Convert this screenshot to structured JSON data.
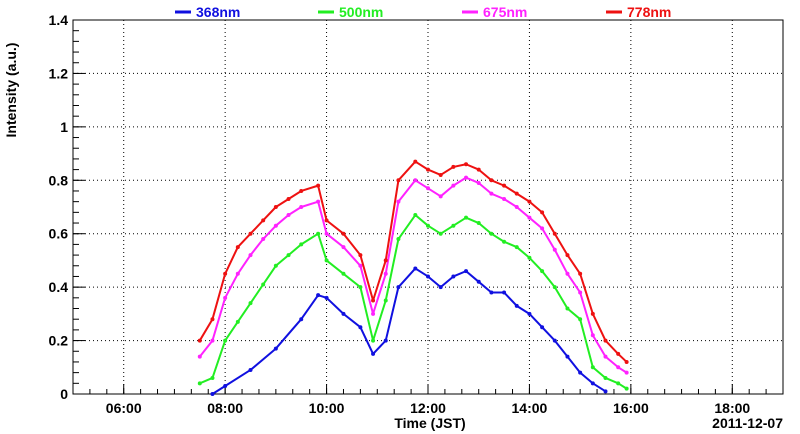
{
  "chart_data": {
    "type": "scatter",
    "xlabel": "Time (JST)",
    "ylabel": "Intensity (a.u.)",
    "date_label": "2011-12-07",
    "xlim": [
      "05:00",
      "19:00"
    ],
    "ylim": [
      0,
      1.4
    ],
    "x_ticks": [
      "06:00",
      "08:00",
      "10:00",
      "12:00",
      "14:00",
      "16:00",
      "18:00"
    ],
    "y_ticks": [
      "0",
      "0.2",
      "0.4",
      "0.6",
      "0.8",
      "1",
      "1.2",
      "1.4"
    ],
    "grid": true,
    "legend_position": "top",
    "series": [
      {
        "name": "368nm",
        "color": "#1010e0",
        "x": [
          "07:45",
          "08:00",
          "08:30",
          "09:00",
          "09:30",
          "09:50",
          "10:00",
          "10:20",
          "10:40",
          "10:55",
          "11:10",
          "11:25",
          "11:45",
          "12:00",
          "12:15",
          "12:30",
          "12:45",
          "13:00",
          "13:15",
          "13:30",
          "13:45",
          "14:00",
          "14:15",
          "14:30",
          "14:45",
          "15:00",
          "15:15",
          "15:30"
        ],
        "values": [
          0.0,
          0.03,
          0.09,
          0.17,
          0.28,
          0.37,
          0.36,
          0.3,
          0.25,
          0.15,
          0.2,
          0.4,
          0.47,
          0.44,
          0.4,
          0.44,
          0.46,
          0.42,
          0.38,
          0.38,
          0.33,
          0.3,
          0.25,
          0.2,
          0.14,
          0.08,
          0.04,
          0.01
        ]
      },
      {
        "name": "500nm",
        "color": "#22ee22",
        "x": [
          "07:30",
          "07:45",
          "08:00",
          "08:15",
          "08:30",
          "08:45",
          "09:00",
          "09:15",
          "09:30",
          "09:50",
          "10:00",
          "10:20",
          "10:40",
          "10:55",
          "11:10",
          "11:25",
          "11:45",
          "12:00",
          "12:15",
          "12:30",
          "12:45",
          "13:00",
          "13:15",
          "13:30",
          "13:45",
          "14:00",
          "14:15",
          "14:30",
          "14:45",
          "15:00",
          "15:15",
          "15:30",
          "15:45",
          "15:55"
        ],
        "values": [
          0.04,
          0.06,
          0.2,
          0.27,
          0.34,
          0.41,
          0.48,
          0.52,
          0.56,
          0.6,
          0.5,
          0.45,
          0.4,
          0.2,
          0.35,
          0.58,
          0.67,
          0.63,
          0.6,
          0.63,
          0.66,
          0.64,
          0.6,
          0.57,
          0.55,
          0.51,
          0.46,
          0.4,
          0.32,
          0.28,
          0.1,
          0.06,
          0.04,
          0.02
        ]
      },
      {
        "name": "675nm",
        "color": "#ff22ff",
        "x": [
          "07:30",
          "07:45",
          "08:00",
          "08:15",
          "08:30",
          "08:45",
          "09:00",
          "09:15",
          "09:30",
          "09:50",
          "10:00",
          "10:20",
          "10:40",
          "10:55",
          "11:10",
          "11:25",
          "11:45",
          "12:00",
          "12:15",
          "12:30",
          "12:45",
          "13:00",
          "13:15",
          "13:30",
          "13:45",
          "14:00",
          "14:15",
          "14:30",
          "14:45",
          "15:00",
          "15:15",
          "15:30",
          "15:45",
          "15:55"
        ],
        "values": [
          0.14,
          0.2,
          0.36,
          0.45,
          0.52,
          0.58,
          0.63,
          0.67,
          0.7,
          0.72,
          0.6,
          0.55,
          0.48,
          0.3,
          0.45,
          0.72,
          0.8,
          0.77,
          0.74,
          0.78,
          0.81,
          0.79,
          0.75,
          0.73,
          0.7,
          0.66,
          0.62,
          0.54,
          0.45,
          0.38,
          0.22,
          0.14,
          0.1,
          0.08
        ]
      },
      {
        "name": "778nm",
        "color": "#ee1111",
        "x": [
          "07:30",
          "07:45",
          "08:00",
          "08:15",
          "08:30",
          "08:45",
          "09:00",
          "09:15",
          "09:30",
          "09:50",
          "10:00",
          "10:20",
          "10:40",
          "10:55",
          "11:10",
          "11:25",
          "11:45",
          "12:00",
          "12:15",
          "12:30",
          "12:45",
          "13:00",
          "13:15",
          "13:30",
          "13:45",
          "14:00",
          "14:15",
          "14:30",
          "14:45",
          "15:00",
          "15:15",
          "15:30",
          "15:45",
          "15:55"
        ],
        "values": [
          0.2,
          0.28,
          0.45,
          0.55,
          0.6,
          0.65,
          0.7,
          0.73,
          0.76,
          0.78,
          0.65,
          0.6,
          0.52,
          0.35,
          0.5,
          0.8,
          0.87,
          0.84,
          0.82,
          0.85,
          0.86,
          0.84,
          0.8,
          0.78,
          0.75,
          0.72,
          0.68,
          0.6,
          0.52,
          0.45,
          0.3,
          0.2,
          0.15,
          0.12
        ]
      }
    ]
  }
}
